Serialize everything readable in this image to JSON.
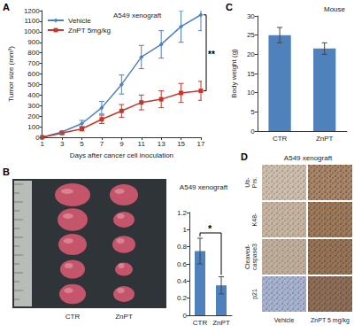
{
  "chart_data": [
    {
      "panel": "A",
      "type": "line",
      "annotation": "A549 xenograft",
      "significance": "**",
      "x_label": "Days after cancer cell inoculation",
      "y_label": "Tumor size (mm³)",
      "x": [
        1,
        3,
        5,
        7,
        9,
        11,
        13,
        15,
        17
      ],
      "series": [
        {
          "name": "Vehicle",
          "color": "#4f81bd",
          "marker": "diamond",
          "values": [
            0,
            50,
            130,
            280,
            500,
            760,
            880,
            1050,
            1160
          ],
          "errors": [
            0,
            10,
            30,
            60,
            90,
            110,
            130,
            150,
            150
          ]
        },
        {
          "name": "ZnPT 5mg/kg",
          "color": "#c0392b",
          "marker": "square",
          "values": [
            0,
            40,
            80,
            170,
            250,
            330,
            360,
            420,
            440
          ],
          "errors": [
            0,
            10,
            20,
            40,
            60,
            70,
            80,
            90,
            90
          ]
        }
      ],
      "xlim": [
        1,
        17
      ],
      "xticks": [
        1,
        3,
        5,
        7,
        9,
        11,
        13,
        15,
        17
      ],
      "ylim": [
        0,
        1200
      ],
      "yticks": [
        0,
        100,
        200,
        300,
        400,
        500,
        600,
        700,
        800,
        900,
        1000,
        1100,
        1200
      ],
      "legend": "upper left",
      "grid": false
    },
    {
      "panel": "B",
      "type": "bar",
      "significance": "*",
      "categories": [
        "CTR",
        "ZnPT"
      ],
      "values": [
        0.75,
        0.35
      ],
      "errors": [
        0.15,
        0.1
      ],
      "color": "#4f81bd",
      "ylim": [
        0,
        1.2
      ],
      "yticks": [
        0,
        0.2,
        0.4,
        0.6,
        0.8,
        1,
        1.2
      ],
      "grid": false
    },
    {
      "panel": "C",
      "type": "bar",
      "title": "Mouse",
      "y_label": "Body weight (g)",
      "categories": [
        "CTR",
        "ZnPT"
      ],
      "values": [
        25,
        21.5
      ],
      "errors": [
        2,
        1.5
      ],
      "color": "#4f81bd",
      "ylim": [
        0,
        30
      ],
      "yticks": [
        0,
        5,
        10,
        15,
        20,
        25,
        30
      ],
      "grid": false
    }
  ],
  "photo": {
    "title": "A549 xenograft",
    "columns": [
      "CTR",
      "ZnPT"
    ]
  },
  "ihc": {
    "panel": "D",
    "title": "A549 xenograft",
    "rows": [
      "Ub-Prs.",
      "K48-",
      "Cleaved-caspase3",
      "p21"
    ],
    "columns": [
      "Vehicle",
      "ZnPT 5 mg/kg"
    ]
  }
}
